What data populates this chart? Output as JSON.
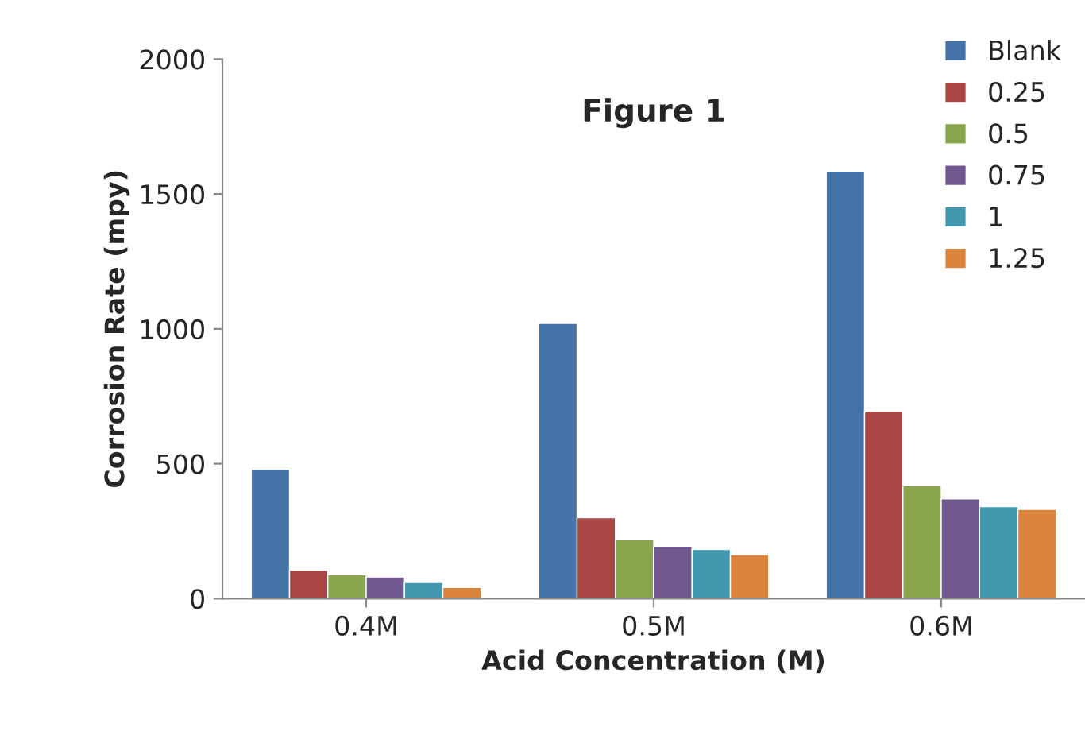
{
  "chart_data": {
    "type": "bar",
    "title": "Figure 1",
    "xlabel": "Acid Concentration (M)",
    "ylabel": "Corrosion Rate (mpy)",
    "categories": [
      "0.4M",
      "0.5M",
      "0.6M"
    ],
    "series": [
      {
        "name": "Blank",
        "color": "#4572a7",
        "values": [
          480,
          1020,
          1585
        ]
      },
      {
        "name": "0.25",
        "color": "#aa4643",
        "values": [
          105,
          300,
          695
        ]
      },
      {
        "name": "0.5",
        "color": "#89a54e",
        "values": [
          88,
          218,
          418
        ]
      },
      {
        "name": "0.75",
        "color": "#71588f",
        "values": [
          80,
          194,
          370
        ]
      },
      {
        "name": "1",
        "color": "#4198af",
        "values": [
          60,
          182,
          341
        ]
      },
      {
        "name": "1.25",
        "color": "#db843d",
        "values": [
          41,
          163,
          331
        ]
      }
    ],
    "ylim": [
      0,
      2000
    ],
    "yticks": [
      0,
      500,
      1000,
      1500,
      2000
    ],
    "grid": false,
    "legend": "top right"
  }
}
